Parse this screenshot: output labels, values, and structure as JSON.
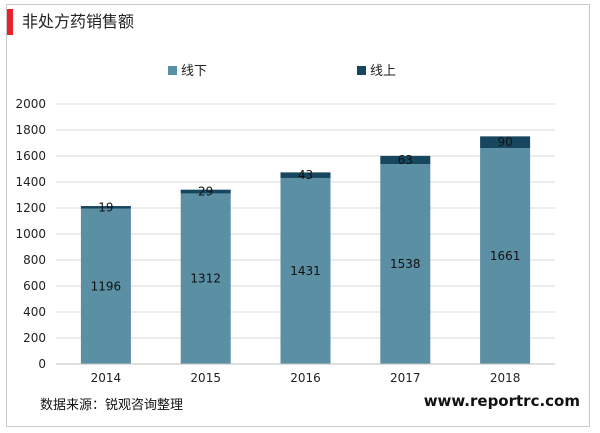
{
  "header": {
    "title": "非处方药销售额",
    "accent_color": "#e8212b"
  },
  "footer": {
    "source": "数据来源：锐观咨询整理",
    "website": "www.reportrc.com"
  },
  "chart_data": {
    "type": "bar",
    "stacked": true,
    "categories": [
      "2014",
      "2015",
      "2016",
      "2017",
      "2018"
    ],
    "series": [
      {
        "name": "线下",
        "values": [
          1196,
          1312,
          1431,
          1538,
          1661
        ],
        "color": "#5b8fa3"
      },
      {
        "name": "线上",
        "values": [
          19,
          29,
          43,
          63,
          90
        ],
        "color": "#17475f"
      }
    ],
    "ylim": [
      0,
      2000
    ],
    "yticks": [
      0,
      200,
      400,
      600,
      800,
      1000,
      1200,
      1400,
      1600,
      1800,
      2000
    ],
    "grid": true,
    "legend_position": "top"
  }
}
